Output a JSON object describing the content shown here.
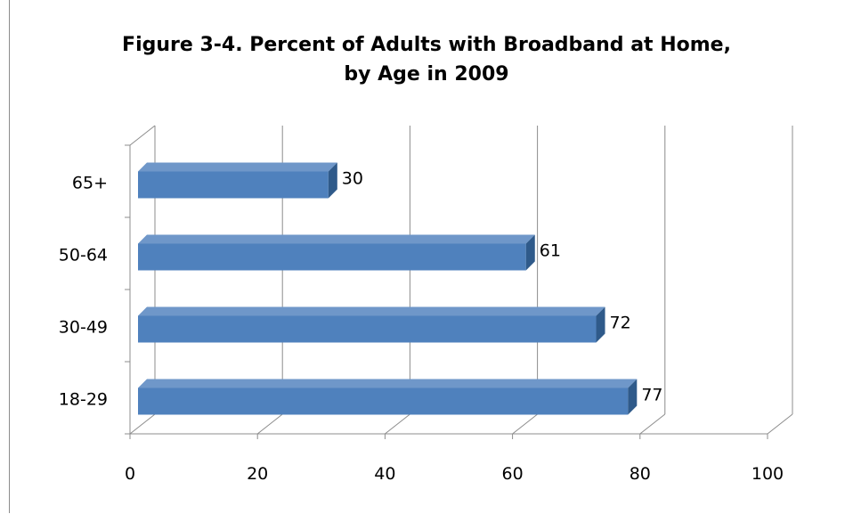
{
  "chart_data": {
    "type": "bar",
    "orientation": "horizontal",
    "style": "3d",
    "title_lines": [
      "Figure 3-4. Percent of Adults with Broadband at Home,",
      "by Age in 2009"
    ],
    "categories": [
      "65+",
      "50-64",
      "30-49",
      "18-29"
    ],
    "values": [
      30,
      61,
      72,
      77
    ],
    "data_labels": [
      "30",
      "61",
      "72",
      "77"
    ],
    "xlim": [
      0,
      100
    ],
    "x_ticks": [
      "0",
      "20",
      "40",
      "60",
      "80",
      "100"
    ],
    "grid": true,
    "legend": "none",
    "colors": {
      "bar_front": "#4f81bd",
      "bar_top": "#6f97c9",
      "bar_side": "#2f5a8a",
      "grid": "#8c8c8c"
    }
  }
}
